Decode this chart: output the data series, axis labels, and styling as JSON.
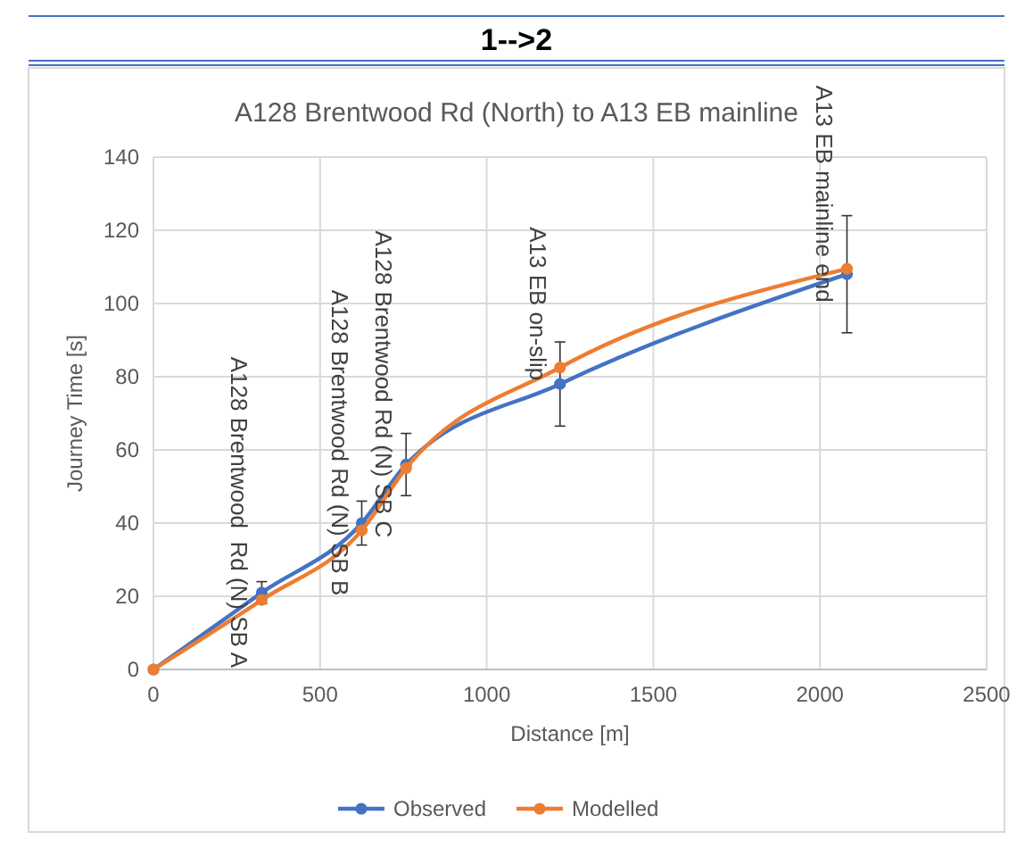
{
  "chart_data": {
    "type": "line",
    "title": "1-->2",
    "subtitle": "A128 Brentwood Rd (North) to A13 EB mainline",
    "xlabel": "Distance [m]",
    "ylabel": "Journey Time [s]",
    "series": [
      {
        "name": "Observed",
        "color": "#4472c4",
        "x": [
          0,
          325,
          625,
          758,
          1220,
          2081
        ],
        "values": [
          0,
          21,
          40,
          56,
          78,
          108
        ],
        "errors": [
          null,
          3,
          6,
          8.5,
          11.5,
          16
        ]
      },
      {
        "name": "Modelled",
        "color": "#ed7d31",
        "x": [
          0,
          325,
          625,
          758,
          1220,
          2081
        ],
        "values": [
          0,
          19,
          38,
          55,
          82.5,
          109.5
        ]
      }
    ],
    "xlim": [
      0,
      2500
    ],
    "xticks": [
      0,
      500,
      1000,
      1500,
      2000,
      2500
    ],
    "ylim": [
      0,
      140
    ],
    "yticks": [
      0,
      20,
      40,
      60,
      80,
      100,
      120,
      140
    ],
    "grid": true,
    "legend": "bottom",
    "marker": "circle",
    "line_style": "solid",
    "annotations": [
      {
        "text": "A128 Brentwood  Rd (N) SB A",
        "x": 325,
        "y": 21
      },
      {
        "text": "A128 Brentwood Rd (N) SB B",
        "x": 625,
        "y": 40
      },
      {
        "text": "A128 Brentwood Rd (N) SB C",
        "x": 758,
        "y": 56
      },
      {
        "text": "A13 EB on-slip",
        "x": 1220,
        "y": 78
      },
      {
        "text": "A13 EB mainline end",
        "x": 2081,
        "y": 108
      }
    ]
  }
}
